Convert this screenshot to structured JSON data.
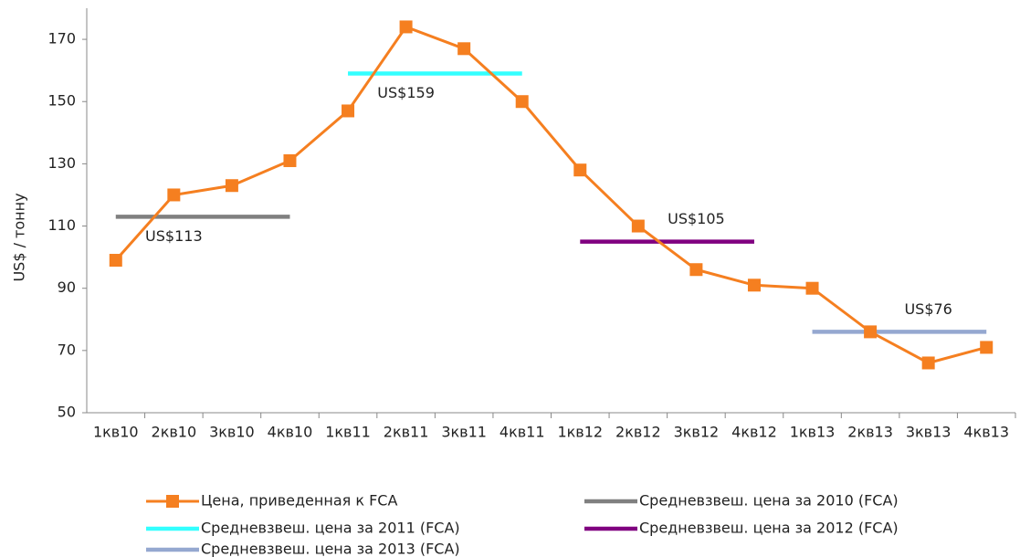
{
  "chart_data": {
    "type": "line",
    "y_label": "US$ / тонну",
    "categories": [
      "1кв10",
      "2кв10",
      "3кв10",
      "4кв10",
      "1кв11",
      "2кв11",
      "3кв11",
      "4кв11",
      "1кв12",
      "2кв12",
      "3кв12",
      "4кв12",
      "1кв13",
      "2кв13",
      "3кв13",
      "4кв13"
    ],
    "series": [
      {
        "name": "Цена, приведенная к FCA",
        "color": "#f57f20",
        "marker": "square",
        "values": [
          99,
          120,
          123,
          131,
          147,
          174,
          167,
          150,
          128,
          110,
          96,
          91,
          90,
          76,
          66,
          71
        ]
      },
      {
        "name": "Средневзвеш. цена за 2010 (FCA)",
        "color": "#808080",
        "values": [
          113,
          113,
          113,
          113,
          null,
          null,
          null,
          null,
          null,
          null,
          null,
          null,
          null,
          null,
          null,
          null
        ],
        "value_labels": [
          null,
          "US$113",
          null,
          null,
          null,
          null,
          null,
          null,
          null,
          null,
          null,
          null,
          null,
          null,
          null,
          null
        ],
        "label_position": "below"
      },
      {
        "name": "Средневзвеш. цена за 2011 (FCA)",
        "color": "#33ffff",
        "values": [
          null,
          null,
          null,
          null,
          159,
          159,
          159,
          159,
          null,
          null,
          null,
          null,
          null,
          null,
          null,
          null
        ],
        "value_labels": [
          null,
          null,
          null,
          null,
          null,
          "US$159",
          null,
          null,
          null,
          null,
          null,
          null,
          null,
          null,
          null,
          null
        ],
        "label_position": "below"
      },
      {
        "name": "Средневзвеш. цена за 2012 (FCA)",
        "color": "#800080",
        "values": [
          null,
          null,
          null,
          null,
          null,
          null,
          null,
          null,
          105,
          105,
          105,
          105,
          null,
          null,
          null,
          null
        ],
        "value_labels": [
          null,
          null,
          null,
          null,
          null,
          null,
          null,
          null,
          null,
          null,
          "US$105",
          null,
          null,
          null,
          null,
          null
        ],
        "label_position": "above"
      },
      {
        "name": "Средневзвеш. цена за 2013 (FCA)",
        "color": "#95a8d0",
        "values": [
          null,
          null,
          null,
          null,
          null,
          null,
          null,
          null,
          null,
          null,
          null,
          null,
          76,
          76,
          76,
          76
        ],
        "value_labels": [
          null,
          null,
          null,
          null,
          null,
          null,
          null,
          null,
          null,
          null,
          null,
          null,
          null,
          null,
          "US$76",
          null
        ],
        "label_position": "above"
      }
    ],
    "ylim": [
      50,
      180
    ],
    "yticks": [
      50,
      70,
      90,
      110,
      130,
      150,
      170
    ],
    "grid": false
  }
}
